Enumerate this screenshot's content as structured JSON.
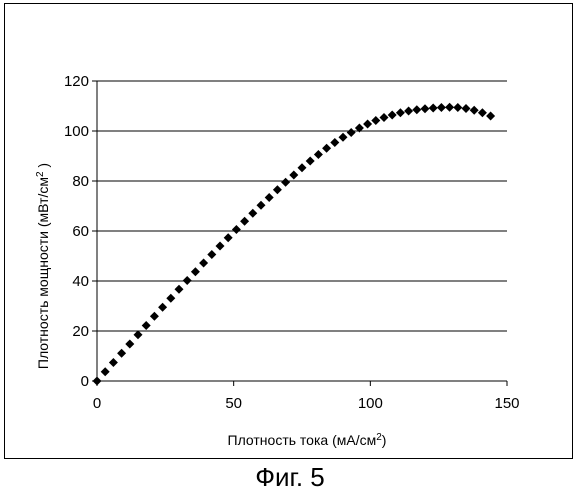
{
  "figure": {
    "caption": "Фиг. 5"
  },
  "chart_data": {
    "type": "scatter",
    "marker": "diamond",
    "marker_color": "#000000",
    "grid": "horizontal",
    "legend": "none",
    "xlabel": {
      "text": "Плотность тока  (мА/см",
      "sup": "2",
      "tail": ")"
    },
    "ylabel": {
      "text": "Плотность мощности (мВт/см",
      "sup": "2",
      "tail": " )"
    },
    "xlim": [
      0,
      150
    ],
    "ylim": [
      0,
      120
    ],
    "xticks": [
      0,
      50,
      100,
      150
    ],
    "yticks": [
      0,
      20,
      40,
      60,
      80,
      100,
      120
    ],
    "series": [
      {
        "x": [
          0,
          3,
          6,
          9,
          12,
          15,
          18,
          21,
          24,
          27,
          30,
          33,
          36,
          39,
          42,
          45,
          48,
          51,
          54,
          57,
          60,
          63,
          66,
          69,
          72,
          75,
          78,
          81,
          84,
          87,
          90,
          93,
          96,
          99,
          102,
          105,
          108,
          111,
          114,
          117,
          120,
          123,
          126,
          129,
          132,
          135,
          138,
          141,
          144
        ],
        "y": [
          0,
          3.7,
          7.4,
          11.1,
          14.8,
          18.5,
          22.2,
          25.9,
          29.5,
          33.1,
          36.7,
          40.2,
          43.7,
          47.2,
          50.6,
          54.0,
          57.3,
          60.6,
          63.9,
          67.1,
          70.3,
          73.4,
          76.5,
          79.5,
          82.4,
          85.3,
          88.0,
          90.6,
          93.1,
          95.4,
          97.5,
          99.4,
          101.2,
          102.8,
          104.2,
          105.4,
          106.4,
          107.3,
          108.0,
          108.5,
          108.9,
          109.2,
          109.4,
          109.5,
          109.4,
          109.0,
          108.3,
          107.3,
          106.0
        ]
      }
    ]
  }
}
